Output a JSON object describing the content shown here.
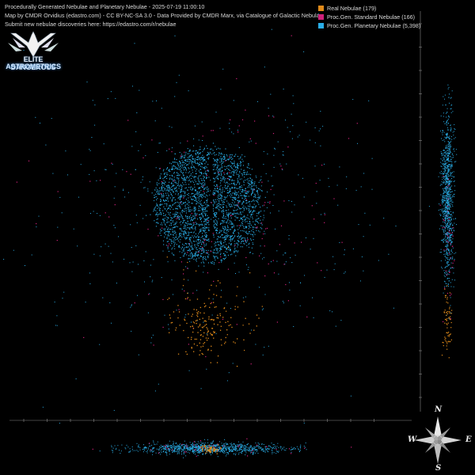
{
  "header": {
    "line1": "Procedurally Generated Nebulae and Planetary Nebulae - 2025-07-19 11:00:10",
    "line2": "Map by CMDR Orvidius (edastro.com) - CC BY-NC-SA 3.0 - Data Provided by CMDR Marx, via Catalogue of Galactic Nebulae",
    "line3": "Submit new nebulae discoveries here: https://edastro.com/r/nebulae"
  },
  "legend": [
    {
      "label": "Real  Nebulae (179)",
      "color": "#e08a1a"
    },
    {
      "label": "Proc.Gen. Standard Nebulae (166)",
      "color": "#d0207a"
    },
    {
      "label": "Proc.Gen. Planetary Nebulae (5,398)",
      "color": "#2aaee8"
    }
  ],
  "logo": {
    "line1": "ELITE DANGEROUS",
    "line2": "ASTROMETRICS"
  },
  "compass": {
    "n": "N",
    "s": "S",
    "e": "E",
    "w": "W"
  },
  "colors": {
    "real": "#e08a1a",
    "standard": "#d0207a",
    "planetary": "#2aaee8",
    "axis": "#888888"
  }
}
